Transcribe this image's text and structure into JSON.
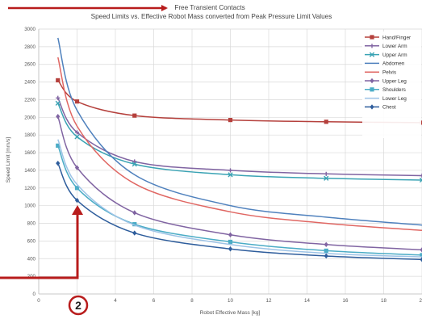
{
  "header": {
    "annotation": "Free Transient Contacts",
    "title": "Speed Limits vs. Effective Robot Mass converted from Peak Pressure Limit Values"
  },
  "callout": {
    "number": "2"
  },
  "colors": {
    "annotation_arrow": "#b81c1c",
    "grid": "#d9d9d9"
  },
  "chart_data": {
    "type": "line",
    "title": "Speed Limits vs. Effective Robot Mass converted from Peak Pressure Limit Values",
    "xlabel": "Robot Effective Mass [kg]",
    "ylabel": "Speed Limit [mm/s]",
    "xlim": [
      0,
      20
    ],
    "ylim": [
      0,
      3000
    ],
    "xticks": [
      "0",
      "2",
      "4",
      "6",
      "8",
      "10",
      "12",
      "14",
      "16",
      "18",
      "20"
    ],
    "yticks": [
      "0",
      "200",
      "400",
      "600",
      "800",
      "1000",
      "1200",
      "1400",
      "1600",
      "1800",
      "2000",
      "2200",
      "2400",
      "2600",
      "2800",
      "3000"
    ],
    "grid": true,
    "legend_position": "top-right",
    "series": [
      {
        "name": "Hand/Finger",
        "color": "#b5403c",
        "marker": "square",
        "x": [
          1,
          2,
          5,
          10,
          15,
          20
        ],
        "y": [
          2420,
          2180,
          2020,
          1970,
          1950,
          1940
        ]
      },
      {
        "name": "Lower Arm",
        "color": "#8064a2",
        "marker": "plus",
        "x": [
          1,
          2,
          5,
          10,
          15,
          20
        ],
        "y": [
          2220,
          1830,
          1500,
          1400,
          1360,
          1340
        ]
      },
      {
        "name": "Upper Arm",
        "color": "#3aa3b4",
        "marker": "cross",
        "x": [
          1,
          2,
          5,
          10,
          15,
          20
        ],
        "y": [
          2160,
          1780,
          1470,
          1350,
          1310,
          1290
        ]
      },
      {
        "name": "Abdomen",
        "color": "#4f81bd",
        "marker": "none",
        "x": [
          1,
          2,
          5,
          10,
          15,
          20
        ],
        "y": [
          2900,
          2080,
          1350,
          1000,
          870,
          780
        ]
      },
      {
        "name": "Pelvis",
        "color": "#e06763",
        "marker": "none",
        "x": [
          1,
          2,
          5,
          10,
          15,
          20
        ],
        "y": [
          2680,
          1900,
          1250,
          930,
          800,
          720
        ]
      },
      {
        "name": "Upper Leg",
        "color": "#8064a2",
        "marker": "diamond",
        "x": [
          1,
          2,
          5,
          10,
          15,
          20
        ],
        "y": [
          2010,
          1430,
          920,
          670,
          560,
          500
        ]
      },
      {
        "name": "Shoulders",
        "color": "#4bacc6",
        "marker": "square",
        "x": [
          1,
          2,
          5,
          10,
          15,
          20
        ],
        "y": [
          1680,
          1200,
          790,
          590,
          490,
          440
        ]
      },
      {
        "name": "Lower Leg",
        "color": "#9dc3e6",
        "marker": "none",
        "x": [
          1,
          2,
          5,
          10,
          15,
          20
        ],
        "y": [
          1750,
          1240,
          780,
          560,
          460,
          420
        ]
      },
      {
        "name": "Chest",
        "color": "#2e5d9c",
        "marker": "diamond",
        "x": [
          1,
          2,
          5,
          10,
          15,
          20
        ],
        "y": [
          1480,
          1060,
          690,
          510,
          430,
          390
        ]
      }
    ]
  }
}
